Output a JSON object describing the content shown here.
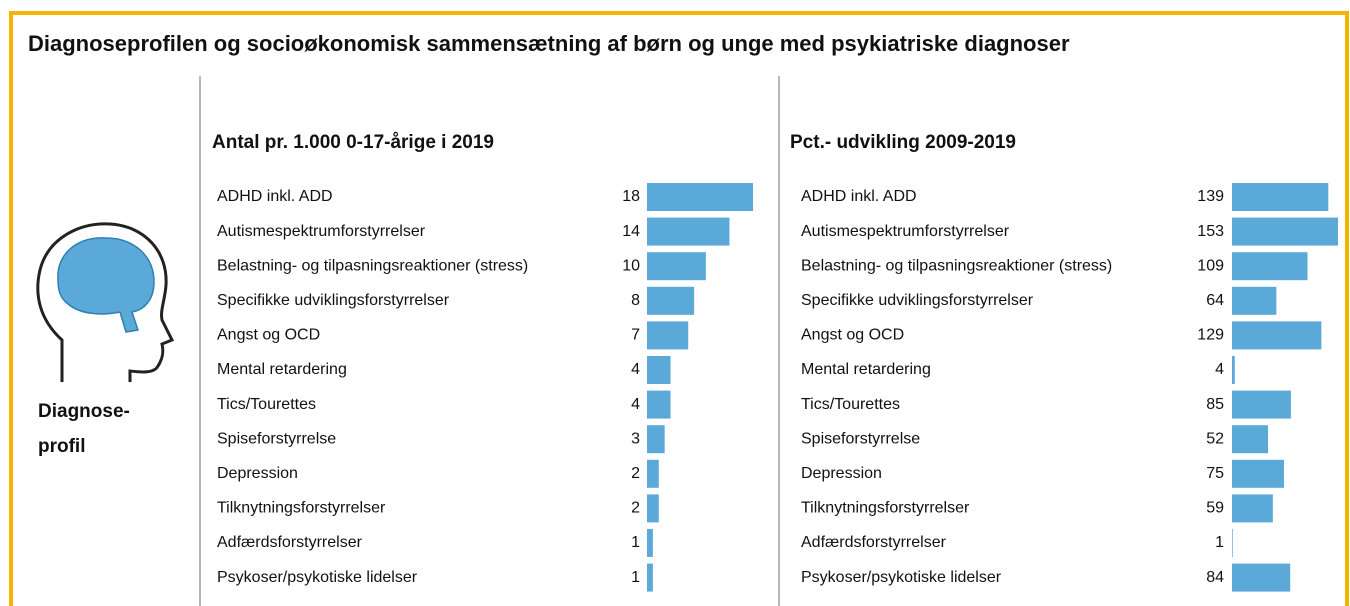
{
  "title": "Diagnoseprofilen og socioøkonomisk sammensætning af børn og unge med psykiatriske diagnoser",
  "section_label": [
    "Diagnose-",
    "profil"
  ],
  "chart_data": [
    {
      "type": "bar",
      "orientation": "horizontal",
      "title": "Antal pr. 1.000 0-17-årige i 2019",
      "color": "#5aa9d8",
      "categories": [
        "ADHD inkl. ADD",
        "Autismespektrumforstyrrelser",
        "Belastning- og tilpasningsreaktioner (stress)",
        "Specifikke udviklingsforstyrrelser",
        "Angst og OCD",
        "Mental retardering",
        "Tics/Tourettes",
        "Spiseforstyrrelse",
        "Depression",
        "Tilknytningsforstyrrelser",
        "Adfærdsforstyrrelser",
        "Psykoser/psykotiske lidelser"
      ],
      "values": [
        18,
        14,
        10,
        8,
        7,
        4,
        4,
        3,
        2,
        2,
        1,
        1
      ]
    },
    {
      "type": "bar",
      "orientation": "horizontal",
      "title": "Pct.- udvikling 2009-2019",
      "color": "#5aa9d8",
      "categories": [
        "ADHD inkl. ADD",
        "Autismespektrumforstyrrelser",
        "Belastning- og tilpasningsreaktioner (stress)",
        "Specifikke udviklingsforstyrrelser",
        "Angst og OCD",
        "Mental retardering",
        "Tics/Tourettes",
        "Spiseforstyrrelse",
        "Depression",
        "Tilknytningsforstyrrelser",
        "Adfærdsforstyrrelser",
        "Psykoser/psykotiske lidelser"
      ],
      "values": [
        139,
        153,
        109,
        64,
        129,
        4,
        85,
        52,
        75,
        59,
        1,
        84
      ]
    }
  ]
}
